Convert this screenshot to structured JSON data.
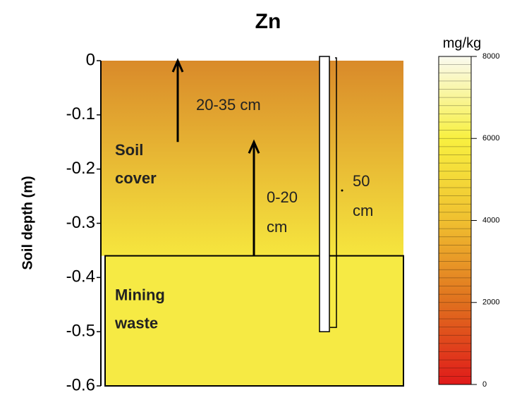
{
  "chart_data": {
    "type": "profile",
    "title": "Zn",
    "ylabel": "Soil depth  (m)",
    "ylim": [
      -0.6,
      0
    ],
    "yticks": [
      0,
      -0.1,
      -0.2,
      -0.3,
      -0.4,
      -0.5,
      -0.6
    ],
    "layers": [
      {
        "name": [
          "Soil",
          "cover"
        ],
        "top": 0,
        "bottom": -0.36,
        "colors": [
          "#d98a2a",
          "#f6e63e"
        ]
      },
      {
        "name": [
          "Mining",
          "waste"
        ],
        "top": -0.36,
        "bottom": -0.6,
        "colors": [
          "#f6ea44",
          "#f6ea44"
        ]
      }
    ],
    "arrows": [
      {
        "label": [
          "20-35 cm"
        ],
        "from": -0.15,
        "to": 0
      },
      {
        "label": [
          "0-20",
          "cm"
        ],
        "from": -0.36,
        "to": -0.15
      }
    ],
    "tube": {
      "label": [
        "50",
        "cm"
      ],
      "top": 0,
      "bottom": -0.5
    },
    "colorbar": {
      "label": "mg/kg",
      "lim": [
        0,
        8000
      ],
      "ticks": [
        0,
        2000,
        4000,
        6000,
        8000
      ],
      "colors": [
        "#e01a1a",
        "#e0701e",
        "#f0c030",
        "#f8f040",
        "#fafaf0"
      ]
    }
  }
}
